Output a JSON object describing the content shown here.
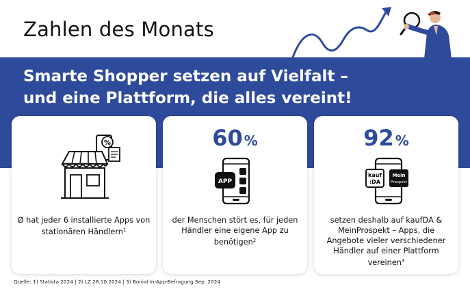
{
  "header": {
    "title": "Zahlen des Monats"
  },
  "headline": {
    "line1": "Smarte Shopper setzen auf Vielfalt –",
    "line2": "und eine Plattform, die alles vereint!"
  },
  "colors": {
    "brand_blue": "#2e4b9b",
    "card_bg": "#ffffff"
  },
  "cards": [
    {
      "stat": "",
      "text_main": "Ø hat jeder 6 installierte Apps von stationären Händlern",
      "footnote": "1",
      "icon": "store-icon"
    },
    {
      "stat": "60",
      "stat_unit": "%",
      "text_main": "der Menschen stört es, für jeden Händler eine eigene App zu benötigen",
      "footnote": "2",
      "icon": "phone-app-icon",
      "icon_label": "APP"
    },
    {
      "stat": "92",
      "stat_unit": "%",
      "text_main": "setzen deshalb auf kaufDA & MeinProspekt – Apps, die Angebote vieler verschiedener Händler auf einer Plattform vereinen",
      "footnote": "3",
      "icon": "phone-logos-icon",
      "logo1": "kauf DA",
      "logo2": "Mein Prospekt"
    }
  ],
  "source": "Quelle: 1) Statista 2024 | 2) LZ 28.10.2024 | 3) Bonial In-App-Befragung Sep. 2024"
}
